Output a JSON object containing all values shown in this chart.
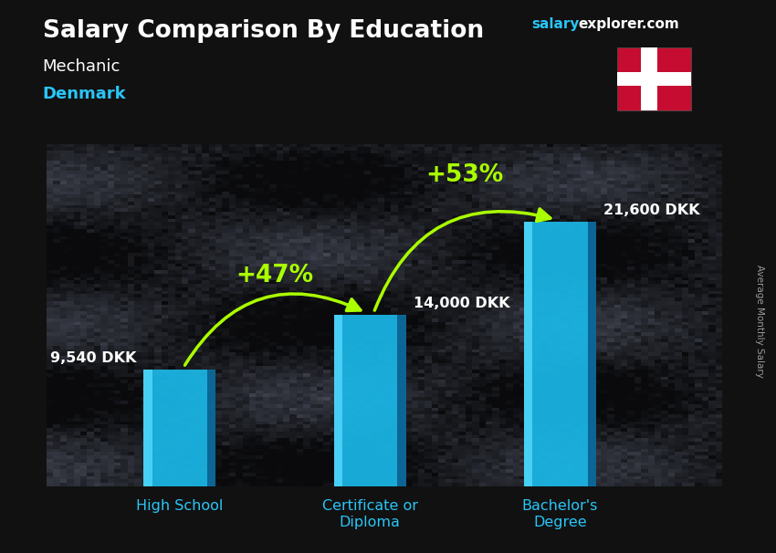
{
  "title": "Salary Comparison By Education",
  "subtitle_job": "Mechanic",
  "subtitle_country": "Denmark",
  "categories": [
    "High School",
    "Certificate or\nDiploma",
    "Bachelor's\nDegree"
  ],
  "values": [
    9540,
    14000,
    21600
  ],
  "value_labels": [
    "9,540 DKK",
    "14,000 DKK",
    "21,600 DKK"
  ],
  "pct_labels": [
    "+47%",
    "+53%"
  ],
  "bar_color_main": "#1ab8e8",
  "bar_color_light": "#4dd4f8",
  "bar_color_dark": "#0d7ab0",
  "bar_color_side": "#0a5a8a",
  "background_color": "#111111",
  "title_color": "#ffffff",
  "subtitle_job_color": "#ffffff",
  "subtitle_country_color": "#29c5f6",
  "value_label_color": "#ffffff",
  "pct_color": "#aaff00",
  "arrow_color": "#aaff00",
  "xlabel_color": "#29c5f6",
  "watermark_salary_color": "#29c5f6",
  "watermark_explorer_color": "#ffffff",
  "side_label": "Average Monthly Salary",
  "ylim": [
    0,
    28000
  ],
  "bar_width": 0.38
}
